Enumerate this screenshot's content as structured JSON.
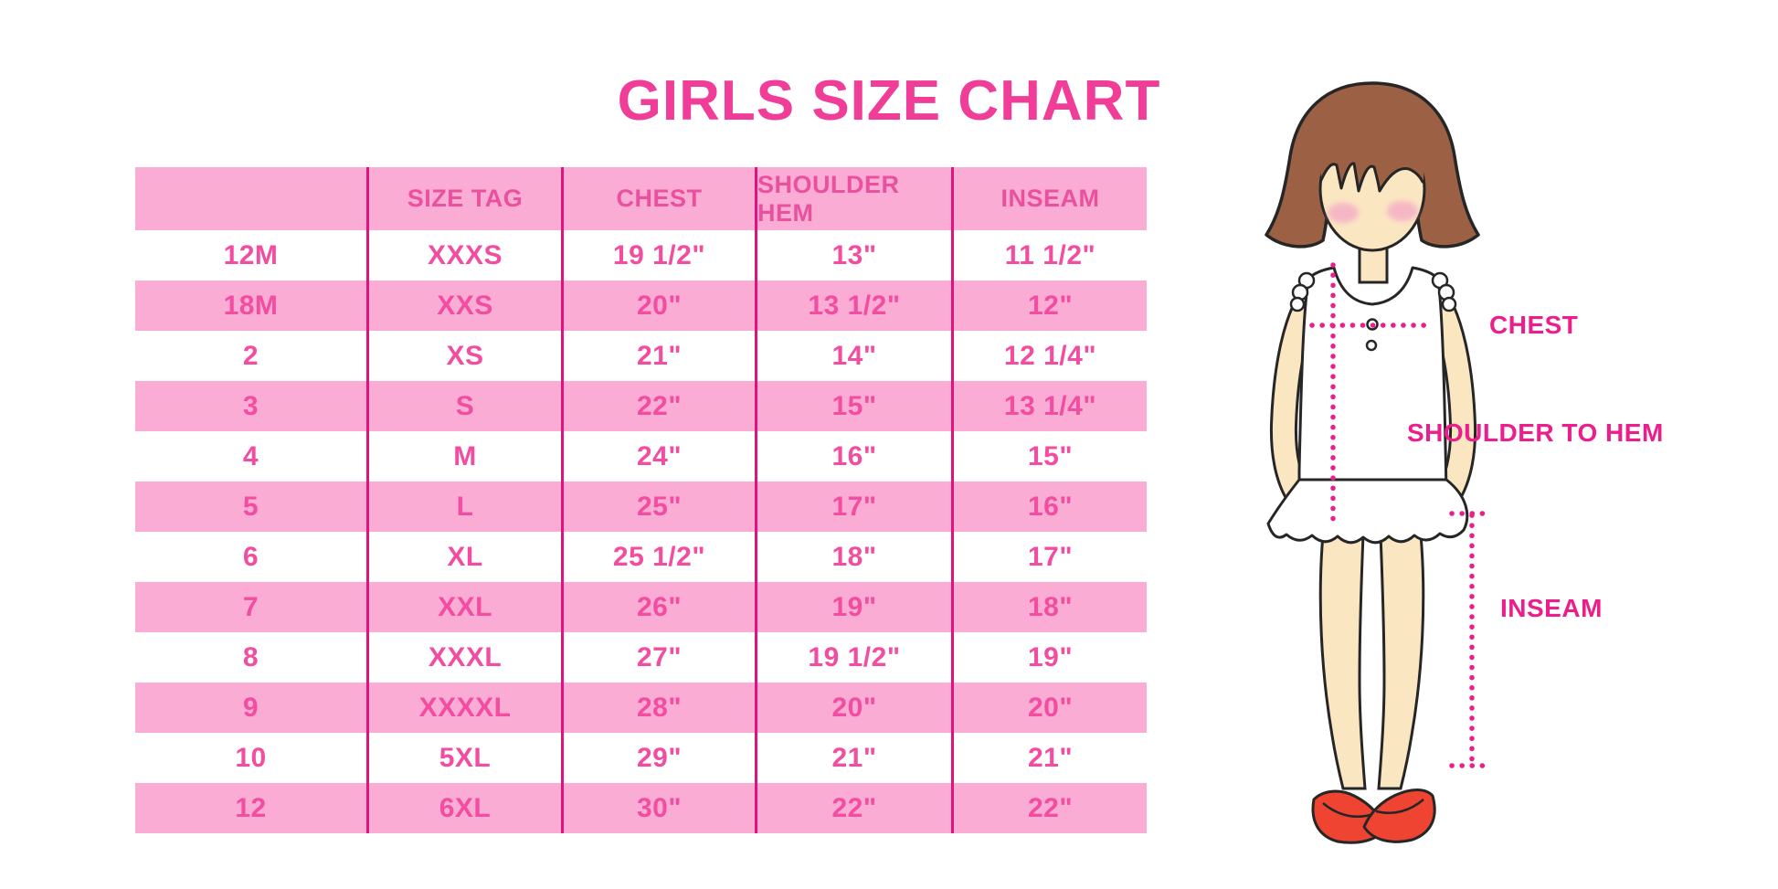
{
  "page": {
    "title": "GIRLS SIZE CHART"
  },
  "chart_data": {
    "type": "table",
    "title": "GIRLS SIZE CHART",
    "columns": [
      "",
      "SIZE TAG",
      "CHEST",
      "SHOULDER HEM",
      "INSEAM"
    ],
    "rows": [
      [
        "12M",
        "XXXS",
        "19 1/2\"",
        "13\"",
        "11 1/2\""
      ],
      [
        "18M",
        "XXS",
        "20\"",
        "13 1/2\"",
        "12\""
      ],
      [
        "2",
        "XS",
        "21\"",
        "14\"",
        "12 1/4\""
      ],
      [
        "3",
        "S",
        "22\"",
        "15\"",
        "13 1/4\""
      ],
      [
        "4",
        "M",
        "24\"",
        "16\"",
        "15\""
      ],
      [
        "5",
        "L",
        "25\"",
        "17\"",
        "16\""
      ],
      [
        "6",
        "XL",
        "25 1/2\"",
        "18\"",
        "17\""
      ],
      [
        "7",
        "XXL",
        "26\"",
        "19\"",
        "18\""
      ],
      [
        "8",
        "XXXL",
        "27\"",
        "19 1/2\"",
        "19\""
      ],
      [
        "9",
        "XXXXL",
        "28\"",
        "20\"",
        "20\""
      ],
      [
        "10",
        "5XL",
        "29\"",
        "21\"",
        "21\""
      ],
      [
        "12",
        "6XL",
        "30\"",
        "22\"",
        "22\""
      ]
    ],
    "layout": {
      "row_stripes": [
        "white",
        "pink"
      ],
      "grid": "vertical-dividers-only"
    }
  },
  "diagram": {
    "figure": "girl measurement illustration",
    "labels": {
      "chest": "CHEST",
      "shoulder_to_hem": "SHOULDER TO HEM",
      "inseam": "INSEAM"
    }
  },
  "colors": {
    "title": "#EF3D98",
    "header_text": "#E9519E",
    "cell_text": "#F24DA0",
    "row_pink": "#FAACD5",
    "row_white": "#FFFFFF",
    "divider": "#DF1280",
    "label_magenta": "#EB1E8C",
    "hair_brown": "#9C6144",
    "skin": "#FBE6C2",
    "blush": "#F4AFC6",
    "dress_white": "#FFFFFF",
    "shoe_red": "#EF4431",
    "outline": "#262626"
  }
}
